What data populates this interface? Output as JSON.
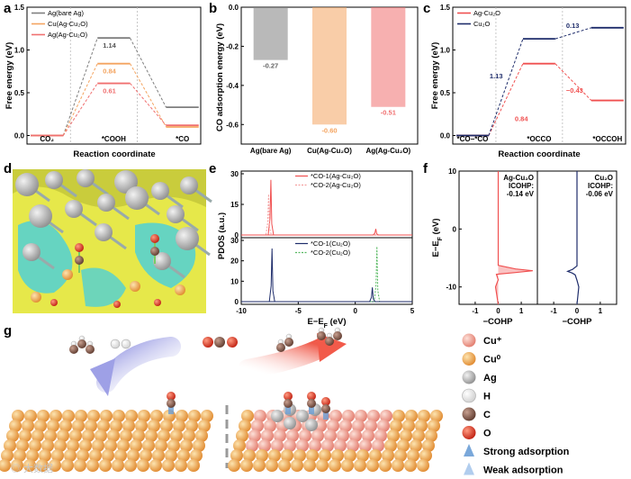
{
  "panels": {
    "a": "a",
    "b": "b",
    "c": "c",
    "d": "d",
    "e": "e",
    "f": "f",
    "g": "g"
  },
  "colors": {
    "bare_ag": "#7f7f7f",
    "cu_ag_cu2o": "#f4a460",
    "ag_ag_cu2o": "#f07070",
    "cu2o_navy": "#1f2d6b",
    "ag_cu2o_red": "#f05050",
    "co2_green": "#55b860"
  },
  "chart_data": [
    {
      "panel": "a",
      "type": "line",
      "ylabel": "Free energy (eV)",
      "xlabel": "Reaction coordinate",
      "ylim": [
        -0.1,
        1.5
      ],
      "yticks": [
        "0.0",
        "0.5",
        "1.0",
        "1.5"
      ],
      "states": [
        "CO₂",
        "*COOH",
        "*CO"
      ],
      "series": [
        {
          "name": "Ag(bare Ag)",
          "values": [
            0,
            1.14,
            0.33
          ],
          "label": "1.14",
          "color": "#7f7f7f"
        },
        {
          "name": "Cu(Ag-Cu₂O)",
          "values": [
            0,
            0.84,
            0.1
          ],
          "label": "0.84",
          "color": "#f4a460"
        },
        {
          "name": "Ag(Ag-Cu₂O)",
          "values": [
            0,
            0.61,
            0.12
          ],
          "label": "0.61",
          "color": "#f07070"
        }
      ]
    },
    {
      "panel": "b",
      "type": "bar",
      "ylabel": "CO adsorption energy (eV)",
      "ylim": [
        -0.7,
        0.0
      ],
      "yticks": [
        "0.0",
        "-0.2",
        "-0.4",
        "-0.6"
      ],
      "categories": [
        "Ag(bare Ag)",
        "Cu(Ag-Cu₂O)",
        "Ag(Ag-Cu₂O)"
      ],
      "values": [
        -0.27,
        -0.6,
        -0.51
      ],
      "value_labels": [
        "-0.27",
        "-0.60",
        "-0.51"
      ]
    },
    {
      "panel": "c",
      "type": "line",
      "ylabel": "Free energy (eV)",
      "xlabel": "Reaction coordinate",
      "ylim": [
        -0.1,
        1.5
      ],
      "yticks": [
        "0.0",
        "0.5",
        "1.0",
        "1.5"
      ],
      "states": [
        "*CO−*CO",
        "*OCCO",
        "*OCCOH"
      ],
      "series": [
        {
          "name": "Ag-Cu₂O",
          "values": [
            0,
            0.84,
            0.41
          ],
          "step_labels": [
            "0.84",
            "−0.43"
          ],
          "color": "#f05050"
        },
        {
          "name": "Cu₂O",
          "values": [
            0,
            1.13,
            1.26
          ],
          "step_labels": [
            "1.13",
            "0.13"
          ],
          "color": "#1f2d6b"
        }
      ]
    },
    {
      "panel": "e",
      "type": "line",
      "ylabel": "PDOS (a.u.)",
      "xlabel": "E−E_F (eV)",
      "xlim": [
        -10,
        5
      ],
      "xticks": [
        "-10",
        "-5",
        "0",
        "5"
      ],
      "yticks_top": [
        "0",
        "15",
        "30"
      ],
      "yticks_bottom": [
        "0",
        "10",
        "20",
        "30"
      ],
      "legend_top": [
        "*CO-1(Ag-Cu₂O)",
        "*CO-2(Ag-Cu₂O)"
      ],
      "legend_bottom": [
        "*CO-1(Cu₂O)",
        "*CO-2(Cu₂O)"
      ],
      "peaks_top": [
        {
          "x": -7.4,
          "y": 27
        },
        {
          "x": -7.6,
          "y": 20
        },
        {
          "x": 1.8,
          "y": 3
        }
      ],
      "peaks_bottom": [
        {
          "x": -7.3,
          "y": 26
        },
        {
          "x": 1.9,
          "y": 27
        },
        {
          "x": 1.5,
          "y": 7
        }
      ]
    },
    {
      "panel": "f",
      "type": "line",
      "ylabel": "E−E_F (eV)",
      "xlabel": "−COHP",
      "ylim": [
        -13,
        10
      ],
      "yticks": [
        "10",
        "0",
        "-10"
      ],
      "xticks": [
        "-1",
        "0",
        "1"
      ],
      "subplots": [
        {
          "name": "Ag-Cu₂O",
          "icohp_label": "ICOHP:",
          "icohp_value": "-0.14 eV",
          "peak_y": -7.2,
          "peak_x": 1.5,
          "color": "#f05050"
        },
        {
          "name": "Cu₂O",
          "icohp_label": "ICOHP:",
          "icohp_value": "-0.06 eV",
          "peak_y": -7.3,
          "peak_x": -0.4,
          "color": "#1f2d6b"
        }
      ]
    }
  ],
  "schematic_g": {
    "legend": [
      {
        "label": "Cu⁺",
        "color": "#f3a79a"
      },
      {
        "label": "Cu⁰",
        "color": "#f2b35a"
      },
      {
        "label": "Ag",
        "color": "#b5b5b5"
      },
      {
        "label": "H",
        "color": "#ffffff"
      },
      {
        "label": "C",
        "color": "#8a5a4a"
      },
      {
        "label": "O",
        "color": "#e0301e"
      },
      {
        "label": "Strong adsorption",
        "color": "#6c9fd6"
      },
      {
        "label": "Weak adsorption",
        "color": "#a9c8ec"
      }
    ]
  }
}
